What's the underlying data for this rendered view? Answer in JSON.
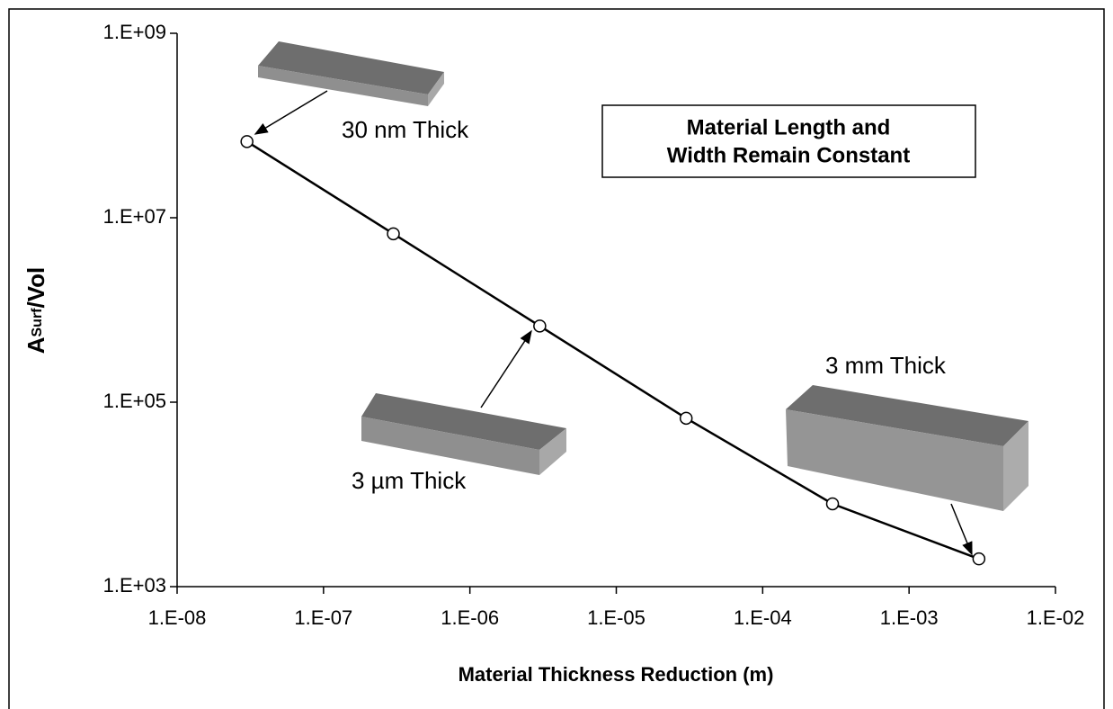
{
  "chart_data": {
    "type": "line",
    "xlabel": "Material Thickness Reduction (m)",
    "ylabel_parts": [
      "A",
      "Surf",
      "/Vol"
    ],
    "box_lines": [
      "Material Length and",
      "Width Remain Constant"
    ],
    "annotations": [
      "30 nm Thick",
      "3 µm Thick",
      "3 mm Thick"
    ],
    "x": [
      3e-08,
      3e-07,
      3e-06,
      3e-05,
      0.0003,
      0.003
    ],
    "series": [
      {
        "color": "#000000",
        "values": [
          67000000,
          6700000,
          670000,
          67000,
          7900,
          2000
        ]
      }
    ],
    "xscale": "log",
    "yscale": "log",
    "xlim": [
      1e-08,
      0.01
    ],
    "ylim": [
      1000,
      1000000000
    ],
    "xticks": [
      {
        "value": 1e-08,
        "label": "1.E-08"
      },
      {
        "value": 1e-07,
        "label": "1.E-07"
      },
      {
        "value": 1e-06,
        "label": "1.E-06"
      },
      {
        "value": 1e-05,
        "label": "1.E-05"
      },
      {
        "value": 0.0001,
        "label": "1.E-04"
      },
      {
        "value": 0.001,
        "label": "1.E-03"
      },
      {
        "value": 0.01,
        "label": "1.E-02"
      }
    ],
    "yticks": [
      {
        "value": 1000,
        "label": "1.E+03"
      },
      {
        "value": 100000,
        "label": "1.E+05"
      },
      {
        "value": 10000000,
        "label": "1.E+07"
      },
      {
        "value": 1000000000,
        "label": "1.E+09"
      }
    ],
    "grid": false
  }
}
